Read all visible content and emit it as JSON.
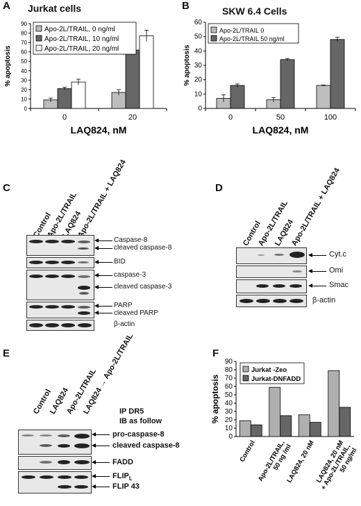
{
  "panels": {
    "A": "A",
    "B": "B",
    "C": "C",
    "D": "D",
    "E": "E",
    "F": "F"
  },
  "chart_data": [
    {
      "id": "A",
      "type": "bar",
      "title": "Jurkat cells",
      "ylabel": "% apoptosis",
      "xlabel": "LAQ824, nM",
      "categories": [
        "0",
        "20"
      ],
      "ylim": [
        0,
        90
      ],
      "yticks": [
        0,
        10,
        20,
        30,
        40,
        50,
        60,
        70,
        80,
        90
      ],
      "legend_position": "top-left",
      "series": [
        {
          "name": "Apo-2L/TRAIL, 0 ng/ml",
          "color": "#bdbdbd",
          "values": [
            9,
            17
          ],
          "errors": [
            2,
            3
          ]
        },
        {
          "name": "Apo-2L/TRAIL, 10 ng/ml",
          "color": "#666666",
          "values": [
            21,
            62
          ],
          "errors": [
            1.5,
            4
          ]
        },
        {
          "name": "Apo-2L/TRAIL, 20 ng/ml",
          "color": "#ffffff",
          "values": [
            28,
            77
          ],
          "errors": [
            3,
            6
          ]
        }
      ]
    },
    {
      "id": "B",
      "type": "bar",
      "title": "SKW 6.4 Cells",
      "ylabel": "% apoptosis",
      "xlabel": "LAQ824, nM",
      "categories": [
        "0",
        "50",
        "100"
      ],
      "ylim": [
        0,
        60
      ],
      "yticks": [
        0,
        10,
        20,
        30,
        40,
        50,
        60
      ],
      "legend_position": "top-left",
      "series": [
        {
          "name": "Apo-2L/TRAIL 0",
          "color": "#bdbdbd",
          "values": [
            7,
            6,
            16
          ],
          "errors": [
            2.5,
            1.5,
            0.3
          ]
        },
        {
          "name": "Apo-2L/TRAIL 50 ng/ml",
          "color": "#666666",
          "values": [
            16,
            34,
            48
          ],
          "errors": [
            1,
            0.8,
            1.5
          ]
        }
      ]
    },
    {
      "id": "F",
      "type": "bar",
      "ylabel": "% apoptosis",
      "categories": [
        "Control",
        "Apo-2L/TRAIL, 50 ng /ml",
        "LAQ824, 20 nM",
        "LAQ824, 20 nM + Apo-2L/TRAIL, 50 ng/ml"
      ],
      "ylim": [
        0,
        90
      ],
      "yticks": [
        0,
        10,
        20,
        30,
        40,
        50,
        60,
        70,
        80,
        90
      ],
      "legend_position": "top-left",
      "series": [
        {
          "name": "Jurkat -Zeo",
          "color": "#b0b0b0",
          "values": [
            19,
            59,
            26,
            79
          ]
        },
        {
          "name": "Jurkat-DNFADD",
          "color": "#666666",
          "values": [
            14,
            25,
            17,
            35
          ]
        }
      ]
    }
  ],
  "blot_C": {
    "lanes": [
      "Control",
      "Apo-2L/TRAIL",
      "LAQ824",
      "Apo-2L/TRAIL + LAQ824"
    ],
    "labels": [
      "Caspase-8",
      "cleaved caspase-8",
      "BID",
      "caspase-3",
      "cleaved caspase-3",
      "PARP",
      "cleaved PARP",
      "β-actin"
    ]
  },
  "blot_D": {
    "lanes": [
      "Control",
      "Apo-2L/TRAIL",
      "LAQ824",
      "Apo-2L/TRAIL + LAQ824"
    ],
    "labels": [
      "Cyt.c",
      "Omi",
      "Smac",
      "β-actin"
    ]
  },
  "blot_E": {
    "lanes": [
      "Control",
      "LAQ824",
      "Apo-2L/TRAIL",
      "LAQ824 → Apo-2L/TRAIL"
    ],
    "note1": "IP DR5",
    "note2": "IB as follow",
    "labels": [
      "pro-caspase-8",
      "cleaved caspase-8",
      "FADD",
      "FLIP",
      "FLIP 43"
    ],
    "flip_sub": "L"
  }
}
